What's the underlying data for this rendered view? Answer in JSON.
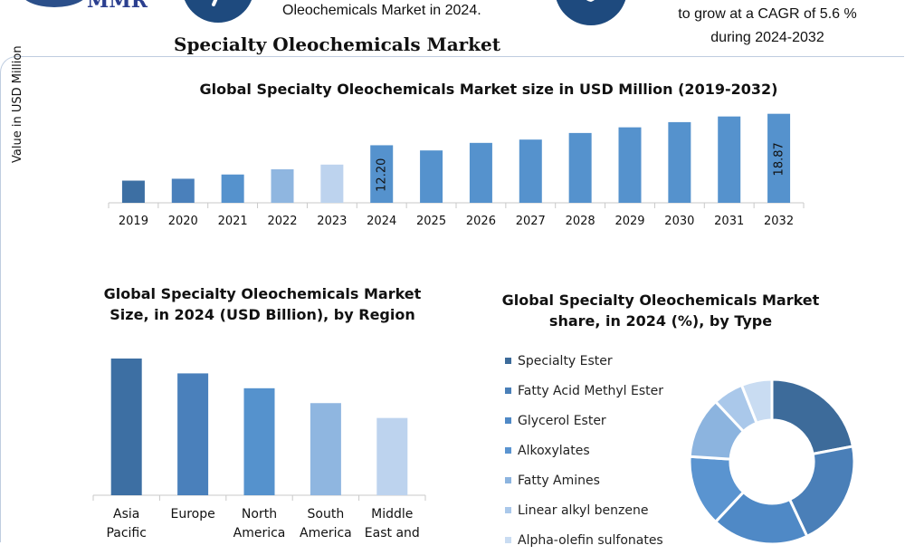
{
  "header": {
    "logo_text": "MMR",
    "brand_title": "Specialty Oleochemicals Market",
    "fact_1": "Oleochemicals Market in 2024.",
    "fact_2_line1": "to grow at a CAGR of 5.6 %",
    "fact_2_line2": "during 2024-2032"
  },
  "colors": {
    "dark_blue": "#3d6fa3",
    "mid_blue": "#5592cd",
    "light_blue": "#8fb6e0",
    "pale_blue": "#bdd3ee",
    "accent_navy": "#2b4f8a"
  },
  "chart_data": [
    {
      "type": "bar",
      "title": "Global Specialty Oleochemicals Market size in USD Million (2019-2032)",
      "ylabel": "Value in USD Million",
      "categories": [
        "2019",
        "2020",
        "2021",
        "2022",
        "2023",
        "2024",
        "2025",
        "2026",
        "2027",
        "2028",
        "2029",
        "2030",
        "2031",
        "2032"
      ],
      "values": [
        4.7,
        5.1,
        6.0,
        7.1,
        8.1,
        12.2,
        11.1,
        12.7,
        13.4,
        14.8,
        16.0,
        17.1,
        18.3,
        18.87
      ],
      "data_labels": {
        "2024": "12.20",
        "2032": "18.87"
      },
      "bar_colors": [
        "#3d6fa3",
        "#4a80bb",
        "#5592cd",
        "#8fb6e0",
        "#bdd3ee",
        "#5592cd",
        "#5592cd",
        "#5592cd",
        "#5592cd",
        "#5592cd",
        "#5592cd",
        "#5592cd",
        "#5592cd",
        "#5592cd"
      ],
      "ylim": [
        0,
        19
      ]
    },
    {
      "type": "bar",
      "title_line1": "Global Specialty Oleochemicals Market",
      "title_line2": "Size, in 2024 (USD Billion), by Region",
      "categories": [
        [
          "Asia",
          "Pacific"
        ],
        [
          "Europe"
        ],
        [
          "North",
          "America"
        ],
        [
          "South",
          "America"
        ],
        [
          "Middle",
          "East and"
        ]
      ],
      "values": [
        4.6,
        4.1,
        3.6,
        3.1,
        2.6
      ],
      "bar_colors": [
        "#3d6fa3",
        "#4a80bb",
        "#5592cd",
        "#8fb6e0",
        "#bdd3ee"
      ],
      "ylim": [
        0,
        4.6
      ]
    },
    {
      "type": "pie",
      "title_line1": "Global Specialty Oleochemicals Market",
      "title_line2": "share, in 2024 (%), by Type",
      "labels": [
        "Specialty Ester",
        "Fatty Acid Methyl Ester",
        "Glycerol Ester",
        "Alkoxylates",
        "Fatty Amines",
        "Linear alkyl benzene",
        "Alpha-olefin sulfonates"
      ],
      "values": [
        22,
        21,
        19,
        14,
        12,
        6,
        6
      ],
      "colors": [
        "#3d6b9a",
        "#4a7fb8",
        "#4f89c6",
        "#5a94d0",
        "#8cb4df",
        "#aac8ea",
        "#c9dcf2"
      ]
    }
  ]
}
